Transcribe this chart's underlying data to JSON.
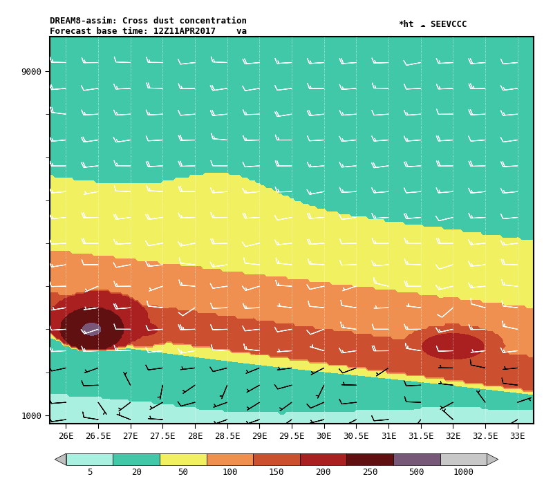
{
  "title_line1": "DREAM8-assim: Cross dust concentration",
  "title_line2": "Forecast base time: 12Z11APR2017    va",
  "title_right": "*ht",
  "logo_text": "SEEVCCC",
  "xlabel_ticks": [
    "26E",
    "26.5E",
    "27E",
    "27.5E",
    "28E",
    "28.5E",
    "29E",
    "29.5E",
    "30E",
    "30.5E",
    "31E",
    "31.5E",
    "32E",
    "32.5E",
    "33E"
  ],
  "ytick_labels": [
    "1000",
    "9000"
  ],
  "ytick_vals": [
    1000,
    9000
  ],
  "ylim": [
    800,
    9800
  ],
  "xlim": [
    25.75,
    33.25
  ],
  "colorbar_levels": [
    5,
    20,
    50,
    100,
    150,
    200,
    250,
    500,
    1000
  ],
  "colorbar_colors": [
    "#aaf0e0",
    "#40c8a8",
    "#f0f060",
    "#f09050",
    "#cc5030",
    "#aa2020",
    "#601010",
    "#785878",
    "#c8c8c8"
  ],
  "background_color": "#ffffff"
}
